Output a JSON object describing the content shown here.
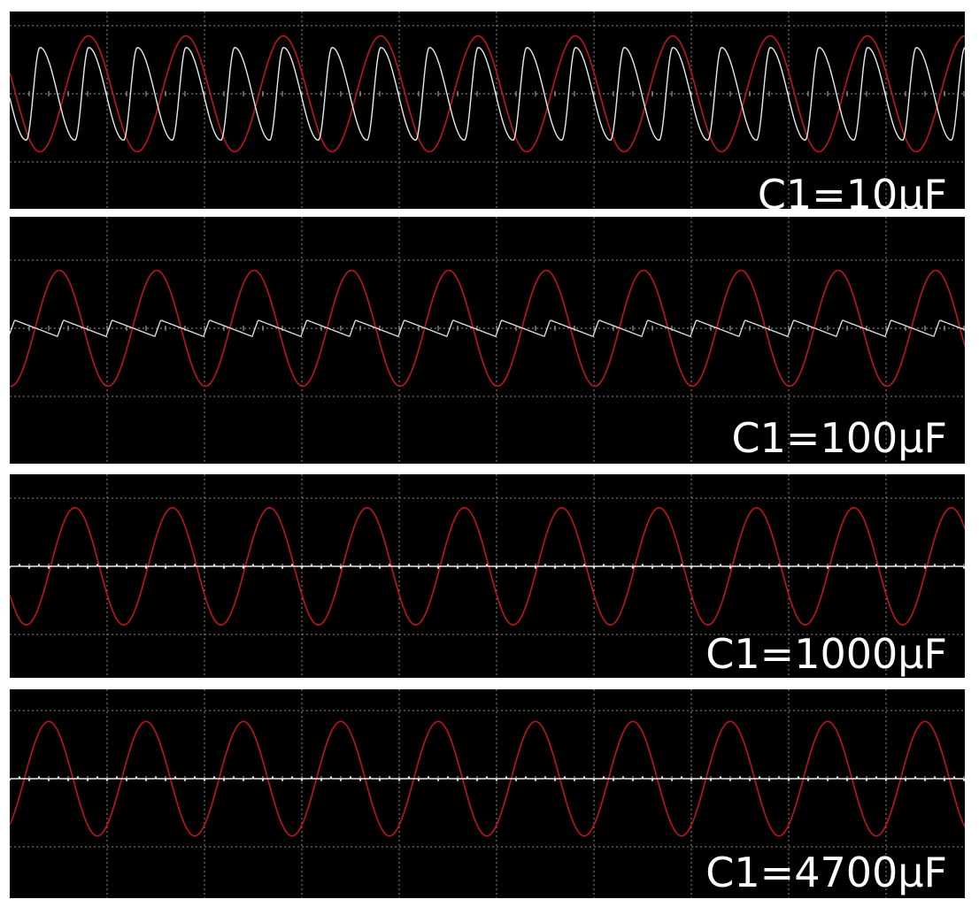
{
  "chart_data": [
    {
      "type": "line",
      "label": "C1=10μF",
      "grid": true,
      "series": [
        {
          "color": "#c0141c",
          "shape": "sine",
          "amplitude_div": 0.85,
          "period_div": 1.0,
          "first_peak_div": 0.81
        },
        {
          "color": "#e8e8e8",
          "shape": "skewed-triangle",
          "amplitude_div": 0.68,
          "period_div": 0.5,
          "first_peak_div": 0.31
        }
      ]
    },
    {
      "type": "line",
      "label": "C1=100μF",
      "grid": true,
      "series": [
        {
          "color": "#c0141c",
          "shape": "sine",
          "amplitude_div": 0.85,
          "period_div": 1.0,
          "first_peak_div": 0.51
        },
        {
          "color": "#d8d8d8",
          "shape": "sawtooth",
          "amplitude_div": 0.12,
          "period_div": 0.5,
          "first_peak_div": 0.05
        }
      ]
    },
    {
      "type": "line",
      "label": "C1=1000μF",
      "grid": true,
      "series": [
        {
          "color": "#c0141c",
          "shape": "sine",
          "amplitude_div": 0.86,
          "period_div": 1.0,
          "first_peak_div": 0.67
        },
        {
          "color": "#e8e8e8",
          "shape": "flat",
          "amplitude_div": 0.0,
          "period_div": 0.5,
          "first_peak_div": 0
        }
      ]
    },
    {
      "type": "line",
      "label": "C1=4700μF",
      "grid": true,
      "series": [
        {
          "color": "#c0141c",
          "shape": "sine",
          "amplitude_div": 0.84,
          "period_div": 1.0,
          "first_peak_div": 0.4
        },
        {
          "color": "#e8e8e8",
          "shape": "flat",
          "amplitude_div": 0.0,
          "period_div": 0.5,
          "first_peak_div": 0
        }
      ]
    }
  ]
}
